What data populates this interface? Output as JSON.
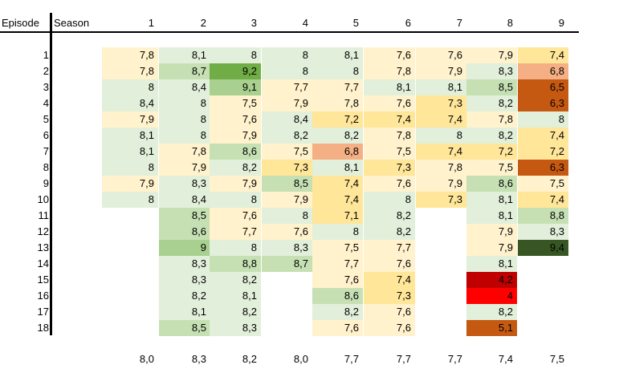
{
  "chart_data": {
    "type": "heatmap",
    "title": "",
    "corner_label_rows": "Episode",
    "corner_label_cols": "Season",
    "seasons": [
      "1",
      "2",
      "3",
      "4",
      "5",
      "6",
      "7",
      "8",
      "9"
    ],
    "episodes": [
      "1",
      "2",
      "3",
      "4",
      "5",
      "6",
      "7",
      "8",
      "9",
      "10",
      "11",
      "12",
      "13",
      "14",
      "15",
      "16",
      "17",
      "18"
    ],
    "values": [
      [
        "7,8",
        "8,1",
        "8",
        "8",
        "8,1",
        "7,6",
        "7,6",
        "7,9",
        "7,4"
      ],
      [
        "7,8",
        "8,7",
        "9,2",
        "8",
        "8",
        "7,8",
        "7,9",
        "8,3",
        "6,8"
      ],
      [
        "8",
        "8,4",
        "9,1",
        "7,7",
        "7,7",
        "8,1",
        "8,1",
        "8,5",
        "6,5"
      ],
      [
        "8,4",
        "8",
        "7,5",
        "7,9",
        "7,8",
        "7,6",
        "7,3",
        "8,2",
        "6,3"
      ],
      [
        "7,9",
        "8",
        "7,6",
        "8,4",
        "7,2",
        "7,4",
        "7,4",
        "7,8",
        "8"
      ],
      [
        "8,1",
        "8",
        "7,9",
        "8,2",
        "8,2",
        "7,8",
        "8",
        "8,2",
        "7,4"
      ],
      [
        "8,1",
        "7,8",
        "8,6",
        "7,5",
        "6,8",
        "7,5",
        "7,4",
        "7,2",
        "7,2"
      ],
      [
        "8",
        "7,9",
        "8,2",
        "7,3",
        "8,1",
        "7,3",
        "7,8",
        "7,5",
        "6,3"
      ],
      [
        "7,9",
        "8,3",
        "7,9",
        "8,5",
        "7,4",
        "7,6",
        "7,9",
        "8,6",
        "7,5"
      ],
      [
        "8",
        "8,4",
        "8",
        "7,9",
        "7,4",
        "8",
        "7,3",
        "8,1",
        "7,4"
      ],
      [
        null,
        "8,5",
        "7,6",
        "8",
        "7,1",
        "8,2",
        null,
        "8,1",
        "8,8"
      ],
      [
        null,
        "8,6",
        "7,7",
        "7,6",
        "8",
        "8,2",
        null,
        "7,9",
        "8,3"
      ],
      [
        null,
        "9",
        "8",
        "8,3",
        "7,5",
        "7,7",
        null,
        "7,9",
        "9,4"
      ],
      [
        null,
        "8,3",
        "8,8",
        "8,7",
        "7,7",
        "7,6",
        null,
        "8,1",
        null
      ],
      [
        null,
        "8,3",
        "8,2",
        null,
        "7,6",
        "7,4",
        null,
        "4,2",
        null
      ],
      [
        null,
        "8,2",
        "8,1",
        null,
        "8,6",
        "7,3",
        null,
        "4",
        null
      ],
      [
        null,
        "8,1",
        "8,2",
        null,
        "8,2",
        "7,6",
        null,
        "8,2",
        null
      ],
      [
        null,
        "8,5",
        "8,3",
        null,
        "7,6",
        "7,6",
        null,
        "5,1",
        null
      ]
    ],
    "season_averages": [
      "8,0",
      "8,3",
      "8,2",
      "8,0",
      "7,7",
      "7,7",
      "7,7",
      "7,4",
      "7,5"
    ],
    "colors": {
      "dark_green": "#375623",
      "green": "#70AD47",
      "med_green": "#A9D08E",
      "light_green": "#C6E0B4",
      "pale_green": "#E2EFDA",
      "pale_yellow": "#FFF2CC",
      "yellow": "#FFE699",
      "salmon": "#F4B084",
      "orange": "#C65911",
      "dark_red": "#C00000",
      "red": "#FF0000"
    }
  }
}
